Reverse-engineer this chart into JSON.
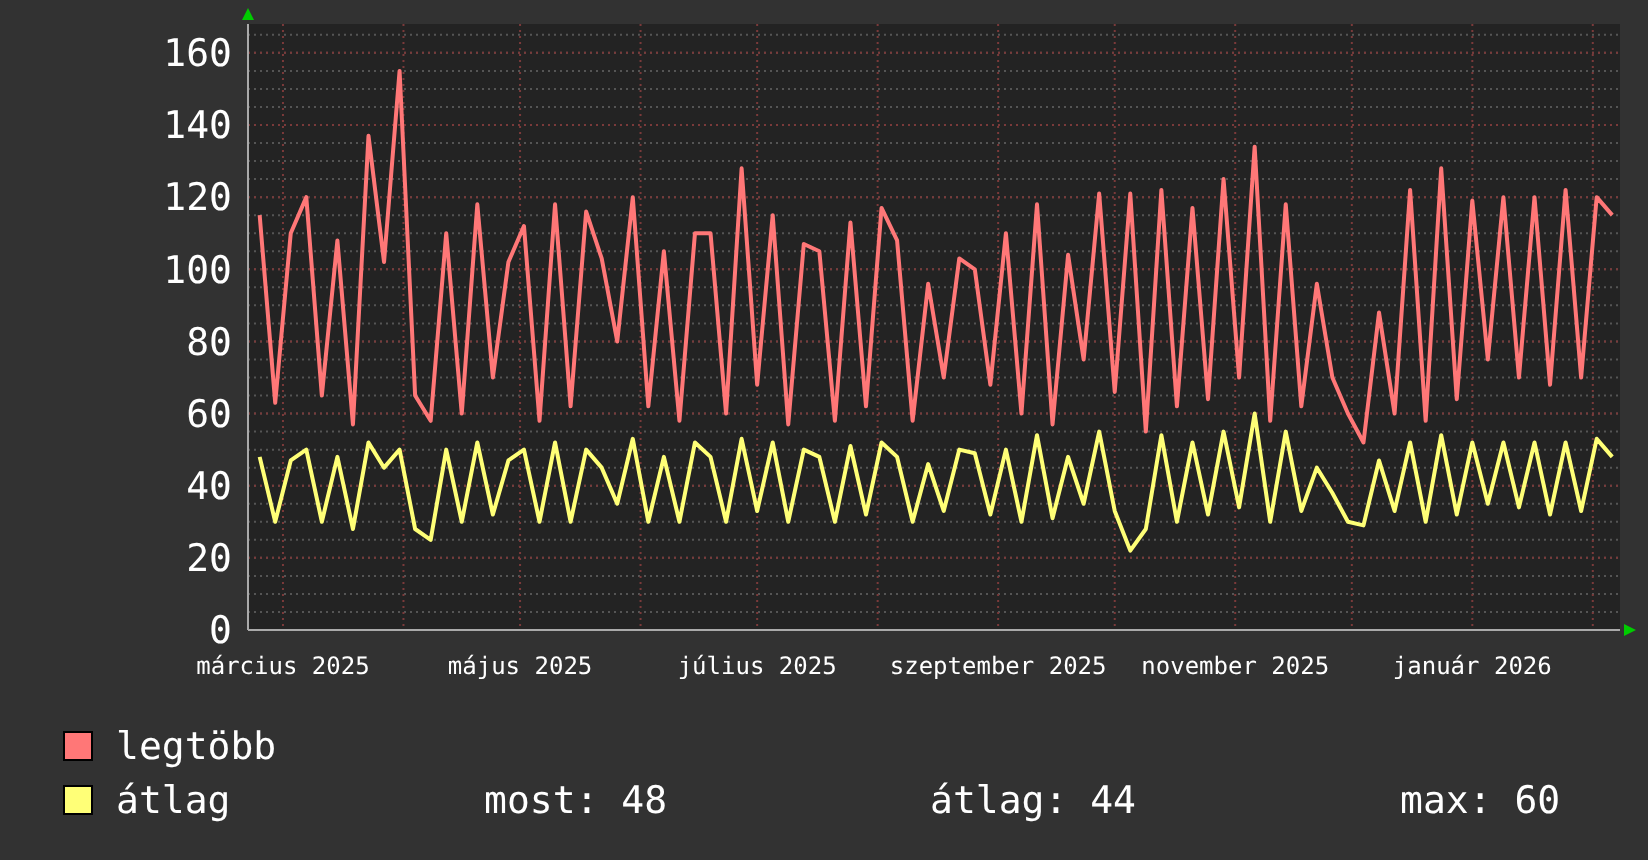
{
  "chart_data": {
    "type": "line",
    "x": [
      "2025-02-23",
      "2025-02-27",
      "2025-03-03",
      "2025-03-07",
      "2025-03-11",
      "2025-03-15",
      "2025-03-19",
      "2025-03-23",
      "2025-03-27",
      "2025-03-31",
      "2025-04-04",
      "2025-04-08",
      "2025-04-12",
      "2025-04-16",
      "2025-04-20",
      "2025-04-24",
      "2025-04-28",
      "2025-05-02",
      "2025-05-06",
      "2025-05-10",
      "2025-05-14",
      "2025-05-18",
      "2025-05-22",
      "2025-05-26",
      "2025-05-30",
      "2025-06-03",
      "2025-06-07",
      "2025-06-11",
      "2025-06-15",
      "2025-06-19",
      "2025-06-23",
      "2025-06-27",
      "2025-07-01",
      "2025-07-05",
      "2025-07-09",
      "2025-07-13",
      "2025-07-17",
      "2025-07-21",
      "2025-07-25",
      "2025-07-29",
      "2025-08-02",
      "2025-08-06",
      "2025-08-10",
      "2025-08-14",
      "2025-08-18",
      "2025-08-22",
      "2025-08-26",
      "2025-08-30",
      "2025-09-03",
      "2025-09-07",
      "2025-09-11",
      "2025-09-15",
      "2025-09-19",
      "2025-09-23",
      "2025-09-27",
      "2025-10-01",
      "2025-10-05",
      "2025-10-09",
      "2025-10-13",
      "2025-10-17",
      "2025-10-21",
      "2025-10-25",
      "2025-10-29",
      "2025-11-02",
      "2025-11-06",
      "2025-11-10",
      "2025-11-14",
      "2025-11-18",
      "2025-11-22",
      "2025-11-26",
      "2025-11-30",
      "2025-12-04",
      "2025-12-08",
      "2025-12-12",
      "2025-12-16",
      "2025-12-20",
      "2025-12-24",
      "2025-12-28",
      "2026-01-01",
      "2026-01-05",
      "2026-01-09",
      "2026-01-13",
      "2026-01-17",
      "2026-01-21",
      "2026-01-25",
      "2026-01-29",
      "2026-02-02",
      "2026-02-06"
    ],
    "series": [
      {
        "name": "legtöbb",
        "color": "#ff7777",
        "values": [
          115,
          63,
          110,
          120,
          65,
          108,
          57,
          137,
          102,
          155,
          65,
          58,
          110,
          60,
          118,
          70,
          102,
          112,
          58,
          118,
          62,
          116,
          103,
          80,
          120,
          62,
          105,
          58,
          110,
          110,
          60,
          128,
          68,
          115,
          57,
          107,
          105,
          58,
          113,
          62,
          117,
          108,
          58,
          96,
          70,
          103,
          100,
          68,
          110,
          60,
          118,
          57,
          104,
          75,
          121,
          66,
          121,
          55,
          122,
          62,
          117,
          64,
          125,
          70,
          134,
          58,
          118,
          62,
          96,
          70,
          60,
          52,
          88,
          60,
          122,
          58,
          128,
          64,
          119,
          75,
          120,
          70,
          120,
          68,
          122,
          70,
          120,
          115
        ]
      },
      {
        "name": "átlag",
        "color": "#ffff77",
        "values": [
          48,
          30,
          47,
          50,
          30,
          48,
          28,
          52,
          45,
          50,
          28,
          25,
          50,
          30,
          52,
          32,
          47,
          50,
          30,
          52,
          30,
          50,
          45,
          35,
          53,
          30,
          48,
          30,
          52,
          48,
          30,
          53,
          33,
          52,
          30,
          50,
          48,
          30,
          51,
          32,
          52,
          48,
          30,
          46,
          33,
          50,
          49,
          32,
          50,
          30,
          54,
          31,
          48,
          35,
          55,
          33,
          22,
          28,
          54,
          30,
          52,
          32,
          55,
          34,
          60,
          30,
          55,
          33,
          45,
          38,
          30,
          29,
          47,
          33,
          52,
          30,
          54,
          32,
          52,
          35,
          52,
          34,
          52,
          32,
          52,
          33,
          53,
          48
        ]
      }
    ],
    "xlim": [
      "2025-02-20",
      "2026-02-08"
    ],
    "xticks": [
      {
        "value": "2025-03-01",
        "label": "március 2025"
      },
      {
        "value": "2025-04-01",
        "label": null
      },
      {
        "value": "2025-05-01",
        "label": "május 2025"
      },
      {
        "value": "2025-06-01",
        "label": null
      },
      {
        "value": "2025-07-01",
        "label": "július 2025"
      },
      {
        "value": "2025-08-01",
        "label": null
      },
      {
        "value": "2025-09-01",
        "label": "szeptember 2025"
      },
      {
        "value": "2025-10-01",
        "label": null
      },
      {
        "value": "2025-11-01",
        "label": "november 2025"
      },
      {
        "value": "2025-12-01",
        "label": null
      },
      {
        "value": "2026-01-01",
        "label": "január 2026"
      },
      {
        "value": "2026-02-01",
        "label": null
      }
    ],
    "ylim": [
      0,
      168
    ],
    "yticks": [
      0,
      20,
      40,
      60,
      80,
      100,
      120,
      140,
      160
    ],
    "grid": true,
    "legend": "bottom",
    "line_style": "solid",
    "marker": "none",
    "annotations": [
      "most: 48",
      "átlag: 44",
      "max: 60"
    ]
  }
}
